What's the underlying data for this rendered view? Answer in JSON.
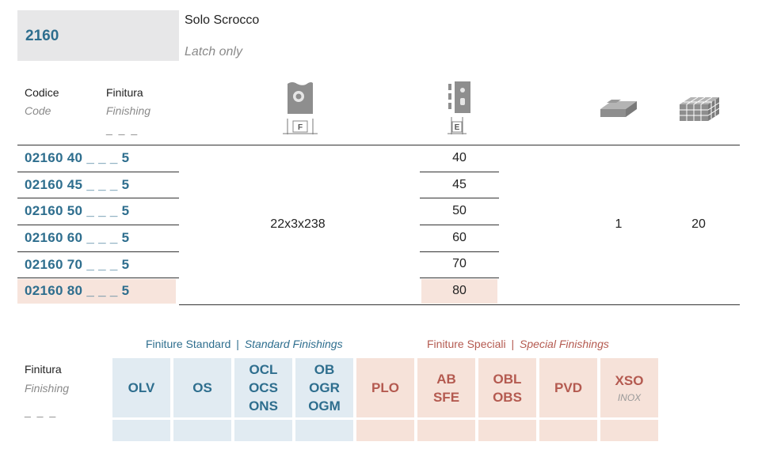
{
  "product": {
    "code": "2160",
    "title_it": "Solo Scrocco",
    "title_en": "Latch only"
  },
  "header": {
    "code_it": "Codice",
    "code_en": "Code",
    "finish_it": "Finitura",
    "finish_en": "Finishing",
    "finish_dash": "_ _ _",
    "col_f_label": "F",
    "col_e_label": "E"
  },
  "rows": [
    {
      "code": "02160 40 _ _ _ 5",
      "e": "40"
    },
    {
      "code": "02160 45 _ _ _ 5",
      "e": "45"
    },
    {
      "code": "02160 50 _ _ _ 5",
      "e": "50"
    },
    {
      "code": "02160 60 _ _ _ 5",
      "e": "60"
    },
    {
      "code": "02160 70 _ _ _ 5",
      "e": "70"
    },
    {
      "code": "02160 80 _ _ _ 5",
      "e": "80"
    }
  ],
  "shared": {
    "dimensions": "22x3x238",
    "pack_qty": "1",
    "box_qty": "20"
  },
  "finishes": {
    "label_it": "Finitura",
    "label_en": "Finishing",
    "label_dash": "_ _ _",
    "standard_title_it": "Finiture Standard",
    "standard_title_en": "Standard Finishings",
    "special_title_it": "Finiture Speciali",
    "special_title_en": "Special Finishings",
    "separator": "|",
    "standard": [
      {
        "lines": [
          "OLV"
        ]
      },
      {
        "lines": [
          "OS"
        ]
      },
      {
        "lines": [
          "OCL",
          "OCS",
          "ONS"
        ]
      },
      {
        "lines": [
          "OB",
          "OGR",
          "OGM"
        ]
      }
    ],
    "special": [
      {
        "lines": [
          "PLO"
        ]
      },
      {
        "lines": [
          "AB",
          "SFE"
        ]
      },
      {
        "lines": [
          "OBL",
          "OBS"
        ]
      },
      {
        "lines": [
          "PVD"
        ]
      },
      {
        "lines": [
          "XSO"
        ],
        "sub": "INOX"
      }
    ]
  },
  "colors": {
    "accent_blue": "#2e6e8e",
    "accent_red": "#b45a50",
    "highlight": "#f7e4dc",
    "standard_bg": "#e1ebf2",
    "special_bg": "#f6e2d9"
  }
}
